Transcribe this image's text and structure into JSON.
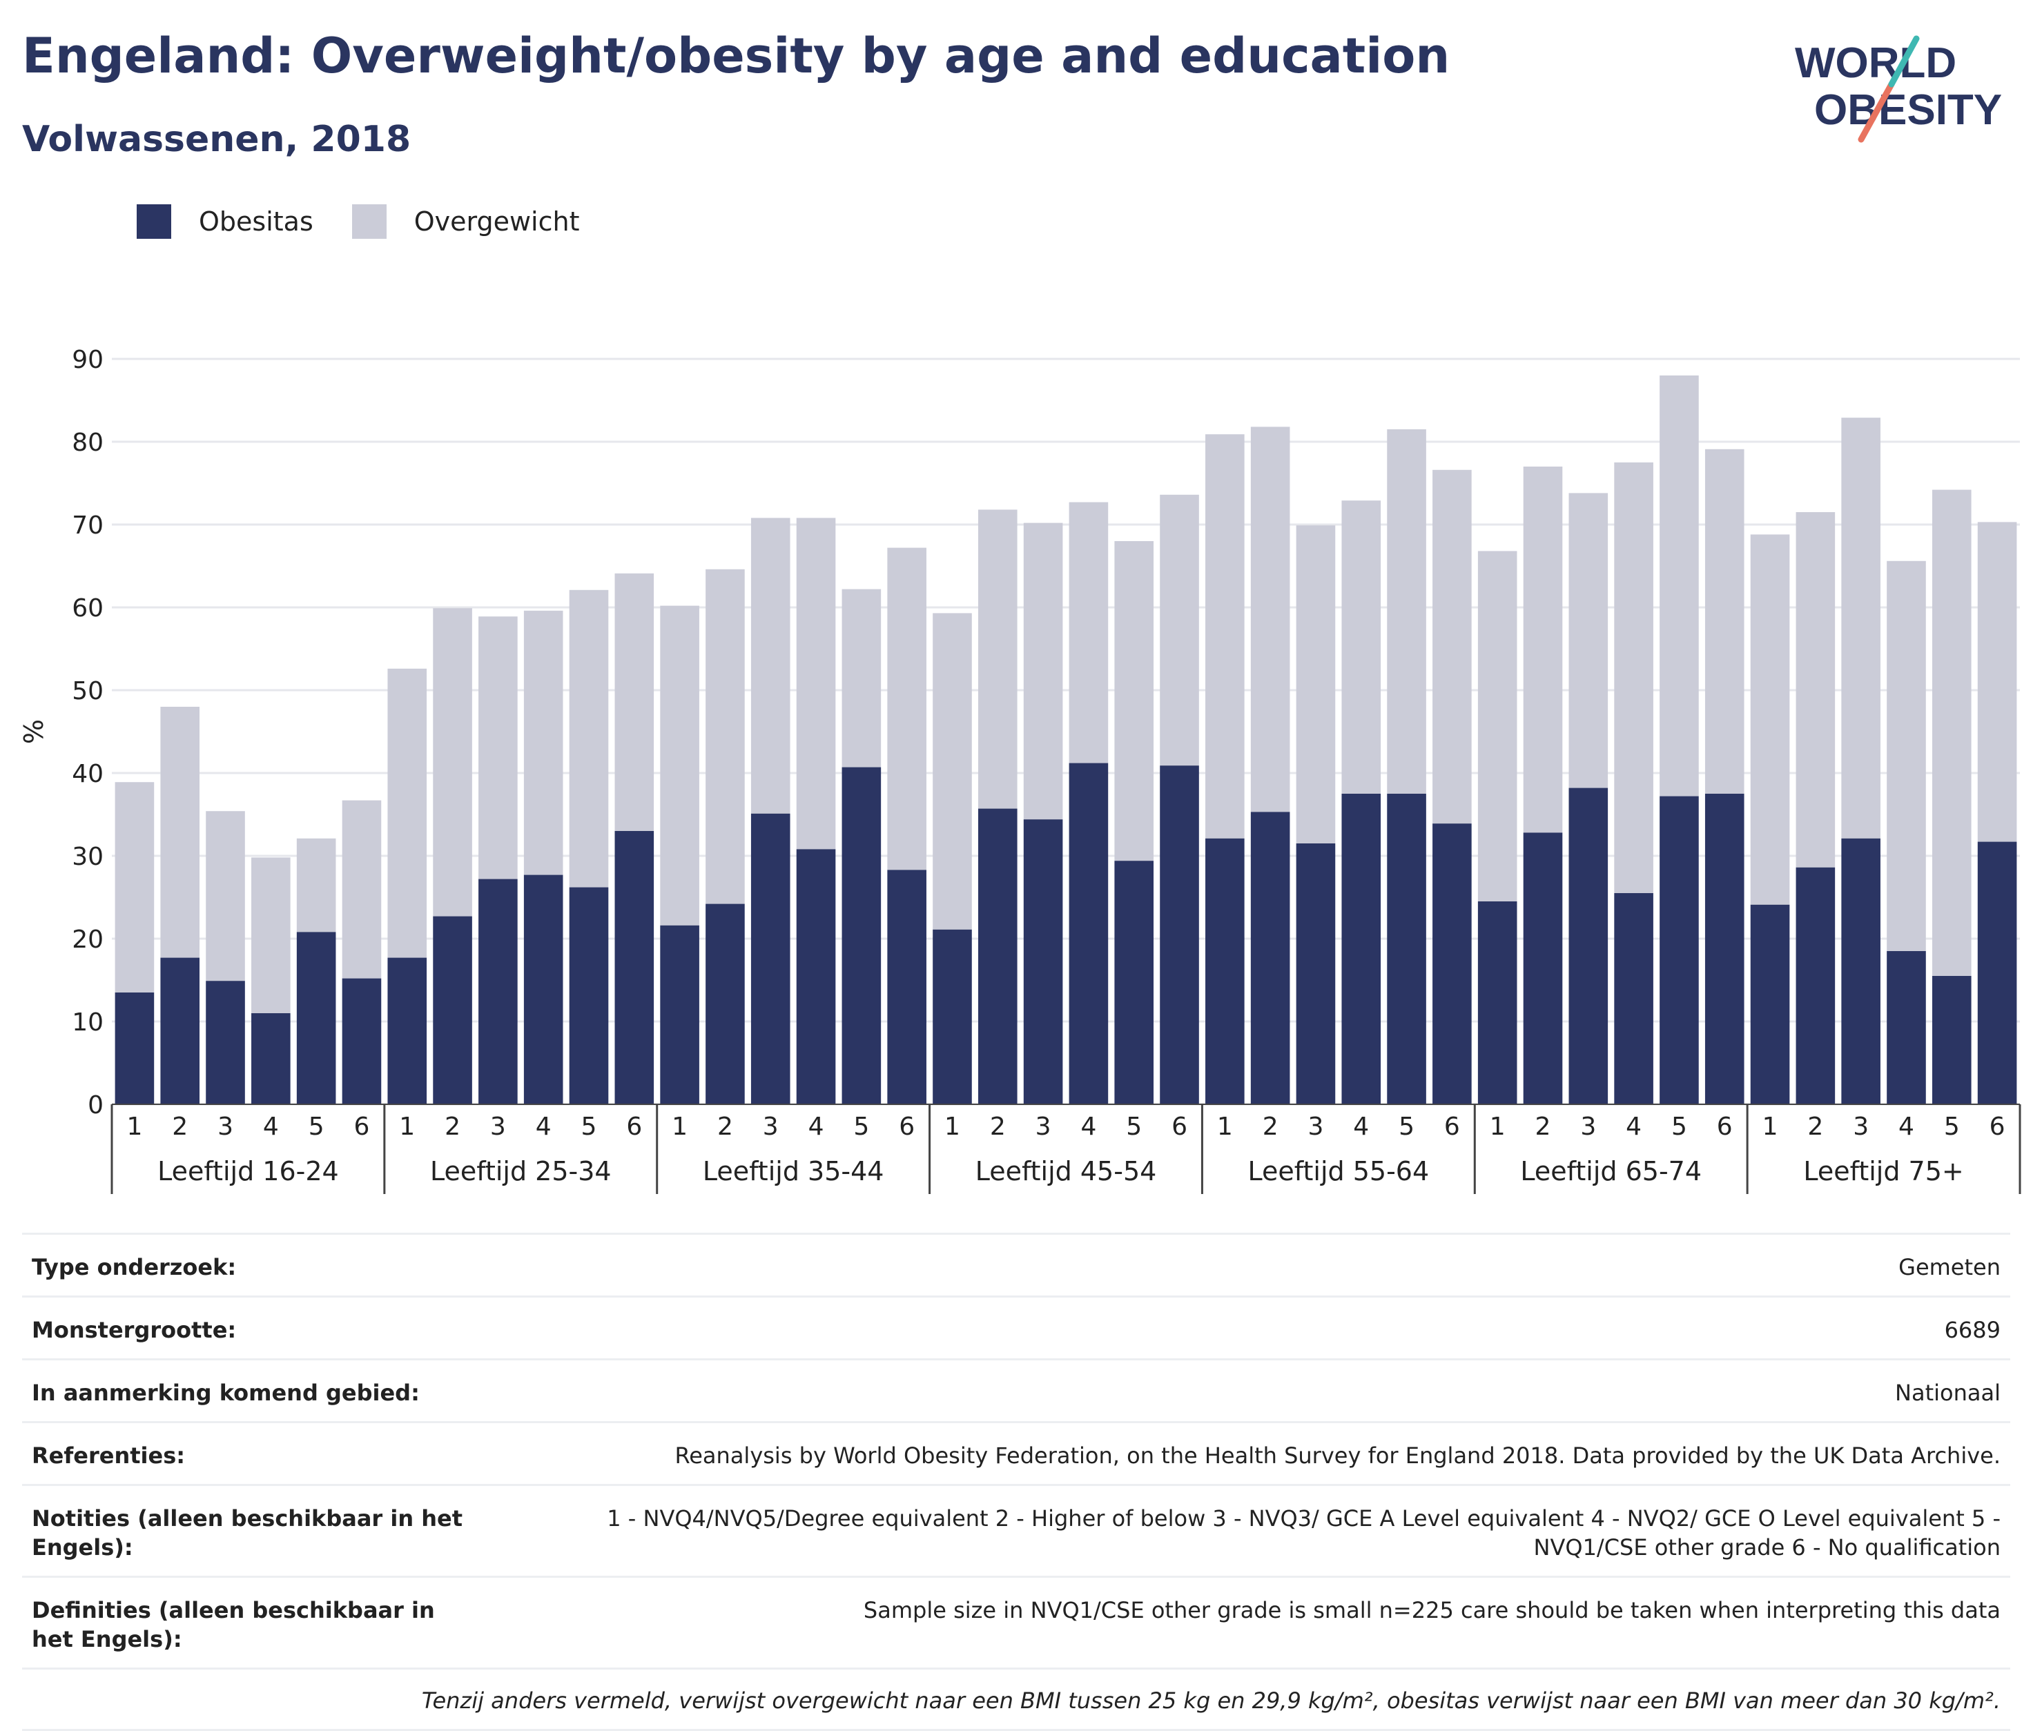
{
  "header": {
    "title": "Engeland: Overweight/obesity by age and education",
    "subtitle": "Volwassenen, 2018"
  },
  "logo": {
    "line1": "WORLD",
    "line2": "OBESITY"
  },
  "colors": {
    "obesitas": "#2b3563",
    "overgewicht": "#cbccd8",
    "text_dark": "#2a3560",
    "logo_teal": "#3fb8b2",
    "logo_coral": "#e8735f"
  },
  "chart_data": {
    "type": "bar",
    "stacked": true,
    "title": "",
    "ylabel": "%",
    "ylim": [
      0,
      90
    ],
    "yticks": [
      0,
      10,
      20,
      30,
      40,
      50,
      60,
      70,
      80,
      90
    ],
    "grid": true,
    "legend": "top-left",
    "groups": [
      "Leeftijd 16-24",
      "Leeftijd 25-34",
      "Leeftijd 35-44",
      "Leeftijd 45-54",
      "Leeftijd 55-64",
      "Leeftijd 65-74",
      "Leeftijd 75+"
    ],
    "subcategories": [
      "1",
      "2",
      "3",
      "4",
      "5",
      "6"
    ],
    "series": [
      {
        "name": "Obesitas",
        "color": "#2b3563",
        "values": [
          13.5,
          17.7,
          14.9,
          11.0,
          20.8,
          15.2,
          17.7,
          22.7,
          27.2,
          27.7,
          26.2,
          33.0,
          21.6,
          24.2,
          35.1,
          30.8,
          40.7,
          28.3,
          21.1,
          35.7,
          34.4,
          41.2,
          29.4,
          40.9,
          32.1,
          35.3,
          31.5,
          37.5,
          37.5,
          33.9,
          24.5,
          32.8,
          38.2,
          25.5,
          37.2,
          37.5,
          24.1,
          28.6,
          32.1,
          18.5,
          15.5,
          31.7
        ]
      },
      {
        "name": "Overgewicht",
        "color": "#cbccd8",
        "values": [
          25.4,
          30.3,
          20.5,
          18.8,
          11.3,
          21.5,
          34.9,
          37.2,
          31.7,
          31.9,
          35.9,
          31.1,
          38.6,
          40.4,
          35.7,
          40.0,
          21.5,
          38.9,
          38.2,
          36.1,
          35.8,
          31.5,
          38.6,
          32.7,
          48.8,
          46.5,
          38.4,
          35.4,
          44.0,
          42.7,
          42.3,
          44.2,
          35.6,
          52.0,
          50.8,
          41.6,
          44.7,
          42.9,
          50.8,
          47.1,
          58.7,
          38.6
        ]
      }
    ]
  },
  "meta": {
    "rows": [
      {
        "key": "Type onderzoek:",
        "value": "Gemeten"
      },
      {
        "key": "Monstergrootte:",
        "value": "6689"
      },
      {
        "key": "In aanmerking komend gebied:",
        "value": "Nationaal"
      },
      {
        "key": "Referenties:",
        "value": "Reanalysis by World Obesity Federation, on the Health Survey for England 2018. Data provided by the UK Data Archive."
      },
      {
        "key": "Notities (alleen beschikbaar in het Engels):",
        "value": "1 - NVQ4/NVQ5/Degree equivalent 2 - Higher of below 3 - NVQ3/ GCE A Level equivalent 4 - NVQ2/ GCE O Level equivalent 5 - NVQ1/CSE other grade 6 - No qualification"
      },
      {
        "key": "Definities (alleen beschikbaar in het Engels):",
        "value": "Sample size in NVQ1/CSE other grade is small n=225 care should be taken when interpreting this data"
      }
    ],
    "footnote": "Tenzij anders vermeld, verwijst overgewicht naar een BMI tussen 25 kg en 29,9 kg/m², obesitas verwijst naar een BMI van meer dan 30 kg/m²."
  }
}
